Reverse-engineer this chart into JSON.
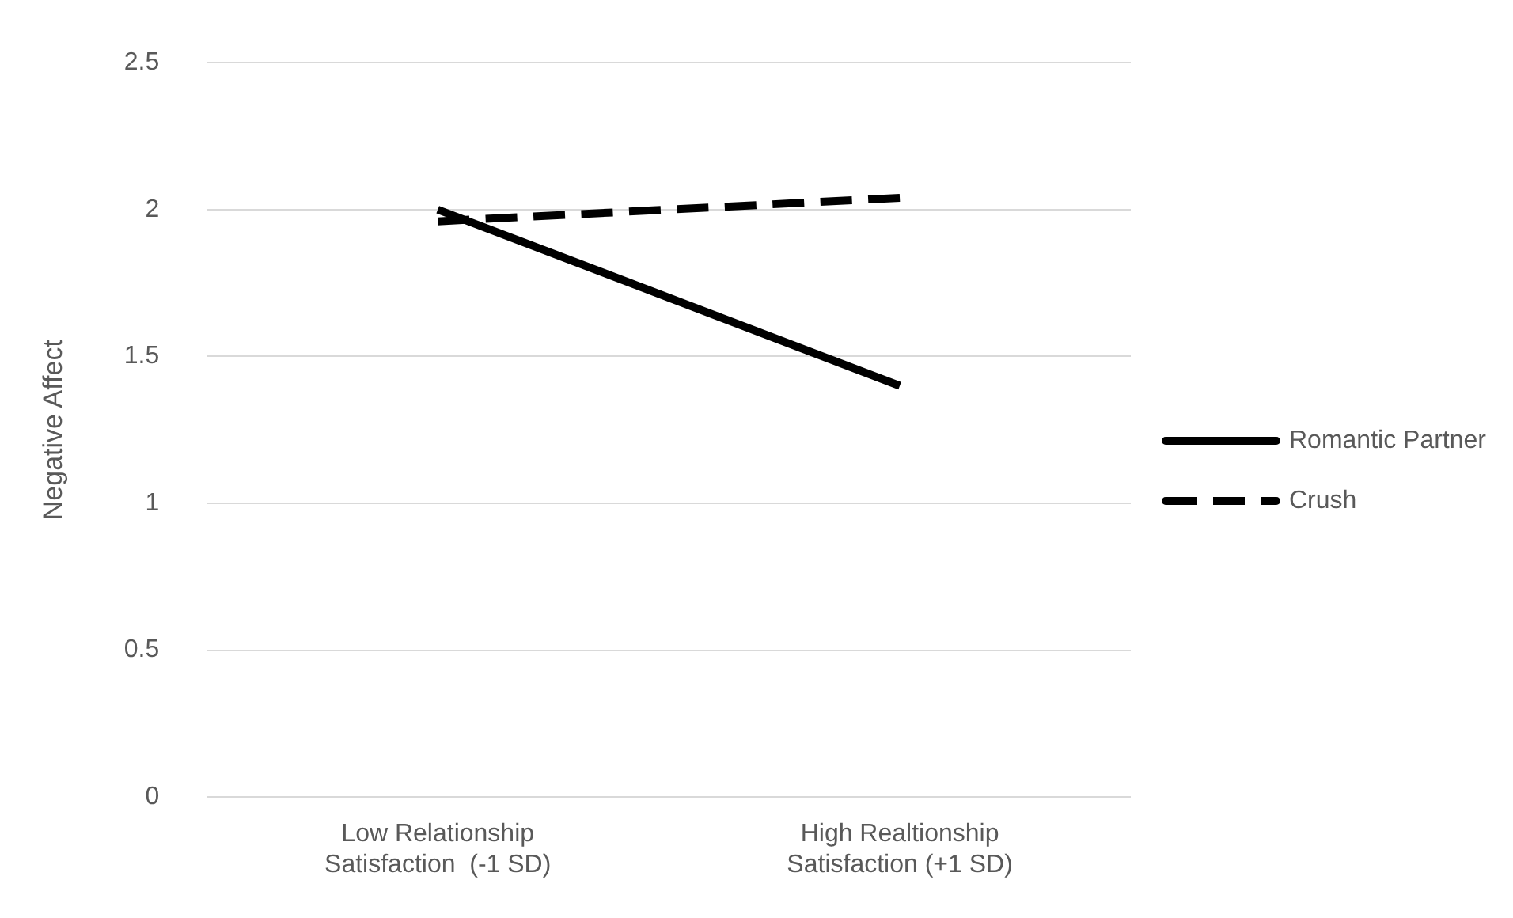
{
  "chart_data": {
    "type": "line",
    "ylabel": "Negative Affect",
    "categories": [
      "Low Relationship\nSatisfaction  (-1 SD)",
      "High Realtionship\nSatisfaction (+1 SD)"
    ],
    "series": [
      {
        "name": "Romantic Partner",
        "color": "#000000",
        "values": [
          2.0,
          1.4
        ],
        "line_style": "solid"
      },
      {
        "name": "Crush",
        "color": "#000000",
        "values": [
          1.96,
          2.04
        ],
        "line_style": "dashed"
      }
    ],
    "ylim": [
      0,
      2.5
    ],
    "yticks": [
      0,
      0.5,
      1,
      1.5,
      2,
      2.5
    ],
    "grid": "y",
    "legend": "right",
    "marker": "none"
  }
}
